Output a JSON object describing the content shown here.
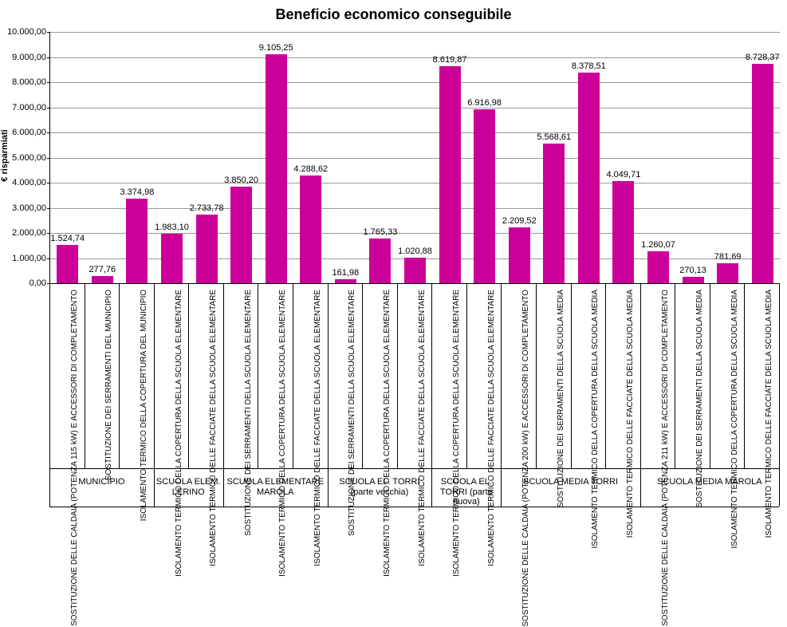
{
  "chart": {
    "type": "bar",
    "title": "Beneficio economico conseguibile",
    "title_fontsize": 18,
    "ylabel": "€ risparmiati",
    "label_fontsize": 11,
    "ylim": [
      0,
      10000
    ],
    "ytick_step": 1000,
    "ytick_labels": [
      "0,00",
      "1.000,00",
      "2.000,00",
      "3.000,00",
      "4.000,00",
      "5.000,00",
      "6.000,00",
      "7.000,00",
      "8.000,00",
      "9.000,00",
      "10.000,00"
    ],
    "background_color": "#ffffff",
    "grid_color": "#999999",
    "bar_color": "#cc0099",
    "bar_width_ratio": 0.62,
    "value_label_fontsize": 11,
    "xlabel_fontsize": 10,
    "groups": [
      {
        "label": "MUNICIPIO",
        "bars": [
          {
            "xlabel": "SOSTITUZIONE DELLE CALDAIA (POTENZA 115 kW) E ACCESSORI DI COMPLETAMENTO",
            "value": 1524.74,
            "value_label": "1.524,74"
          },
          {
            "xlabel": "SOSTITUZIONE DEI SERRAMENTI DEL MUNICIPIO",
            "value": 277.76,
            "value_label": "277,76"
          },
          {
            "xlabel": "ISOLAMENTO TERMICO DELLA COPERTURA DEL MUNICIPIO",
            "value": 3374.98,
            "value_label": "3.374,98"
          }
        ]
      },
      {
        "label": "SCUOLA ELEM. LERINO",
        "bars": [
          {
            "xlabel": "ISOLAMENTO TERMICO DELLA COPERTURA DELLA SCUOLA ELEMENTARE",
            "value": 1983.1,
            "value_label": "1.983,10"
          },
          {
            "xlabel": "ISOLAMENTO TERMICO DELLE FACCIATE DELLA SCUOLA ELEMENTARE",
            "value": 2733.78,
            "value_label": "2.733,78"
          }
        ]
      },
      {
        "label": "SCUOLA ELEMENTARE MAROLA",
        "bars": [
          {
            "xlabel": "SOSTITUZIONE DEI SERRAMENTI DELLA SCUOLA ELEMENTARE",
            "value": 3850.2,
            "value_label": "3.850,20"
          },
          {
            "xlabel": "ISOLAMENTO TERMICO DELLA COPERTURA DELLA SCUOLA ELEMENTARE",
            "value": 9105.25,
            "value_label": "9.105,25"
          },
          {
            "xlabel": "ISOLAMENTO TERMICO DELLE FACCIATE DELLA SCUOLA ELEMENTARE",
            "value": 4288.62,
            "value_label": "4.288,62"
          }
        ]
      },
      {
        "label": "SCUOLA EL. TORRI (parte vecchia)",
        "bars": [
          {
            "xlabel": "SOSTITUZIONE DEI SERRAMENTI DELLA SCUOLA ELEMENTARE",
            "value": 161.98,
            "value_label": "161,98"
          },
          {
            "xlabel": "ISOLAMENTO TERMICO DELLA COPERTURA DELLA SCUOLA ELEMENTARE",
            "value": 1765.33,
            "value_label": "1.765,33"
          },
          {
            "xlabel": "ISOLAMENTO TERMICO DELLE FACCIATE DELLA SCUOLA ELEMENTARE",
            "value": 1020.88,
            "value_label": "1.020,88"
          }
        ]
      },
      {
        "label": "SCUOLA EL. TORRI (parte nuova)",
        "bars": [
          {
            "xlabel": "ISOLAMENTO TERMICO DELLA COPERTURA DELLA SCUOLA ELEMENTARE",
            "value": 8619.87,
            "value_label": "8.619,87"
          },
          {
            "xlabel": "ISOLAMENTO TERMICO DELLE FACCIATE DELLA SCUOLA ELEMENTARE",
            "value": 6916.98,
            "value_label": "6.916,98"
          }
        ]
      },
      {
        "label": "SCUOLA MEDIA TORRI",
        "bars": [
          {
            "xlabel": "SOSTITUZIONE DELLE CALDAIA (POTENZA 200 kW) E ACCESSORI DI COMPLETAMENTO",
            "value": 2209.52,
            "value_label": "2.209,52"
          },
          {
            "xlabel": "SOSTITUZIONE DEI SERRAMENTI DELLA SCUOLA MEDIA",
            "value": 5568.61,
            "value_label": "5.568,61"
          },
          {
            "xlabel": "ISOLAMENTO TERMICO DELLA COPERTURA DELLA SCUOLA MEDIA",
            "value": 8378.51,
            "value_label": "8.378,51"
          },
          {
            "xlabel": "ISOLAMENTO TERMICO DELLE FACCIATE DELLA SCUOLA MEDIA",
            "value": 4049.71,
            "value_label": "4.049,71"
          }
        ]
      },
      {
        "label": "SCUOLA MEDIA MAROLA",
        "bars": [
          {
            "xlabel": "SOSTITUZIONE DELLE CALDAIA (POTENZA 211 kW) E ACCESSORI DI COMPLETAMENTO",
            "value": 1260.07,
            "value_label": "1.260,07"
          },
          {
            "xlabel": "SOSTITUZIONE DEI SERRAMENTI DELLA SCUOLA MEDIA",
            "value": 270.13,
            "value_label": "270,13"
          },
          {
            "xlabel": "ISOLAMENTO TERMICO DELLA COPERTURA DELLA SCUOLA MEDIA",
            "value": 781.69,
            "value_label": "781,69"
          },
          {
            "xlabel": "ISOLAMENTO TERMICO DELLE FACCIATE DELLA SCUOLA MEDIA",
            "value": 8728.37,
            "value_label": "8.728,37"
          }
        ]
      }
    ]
  }
}
